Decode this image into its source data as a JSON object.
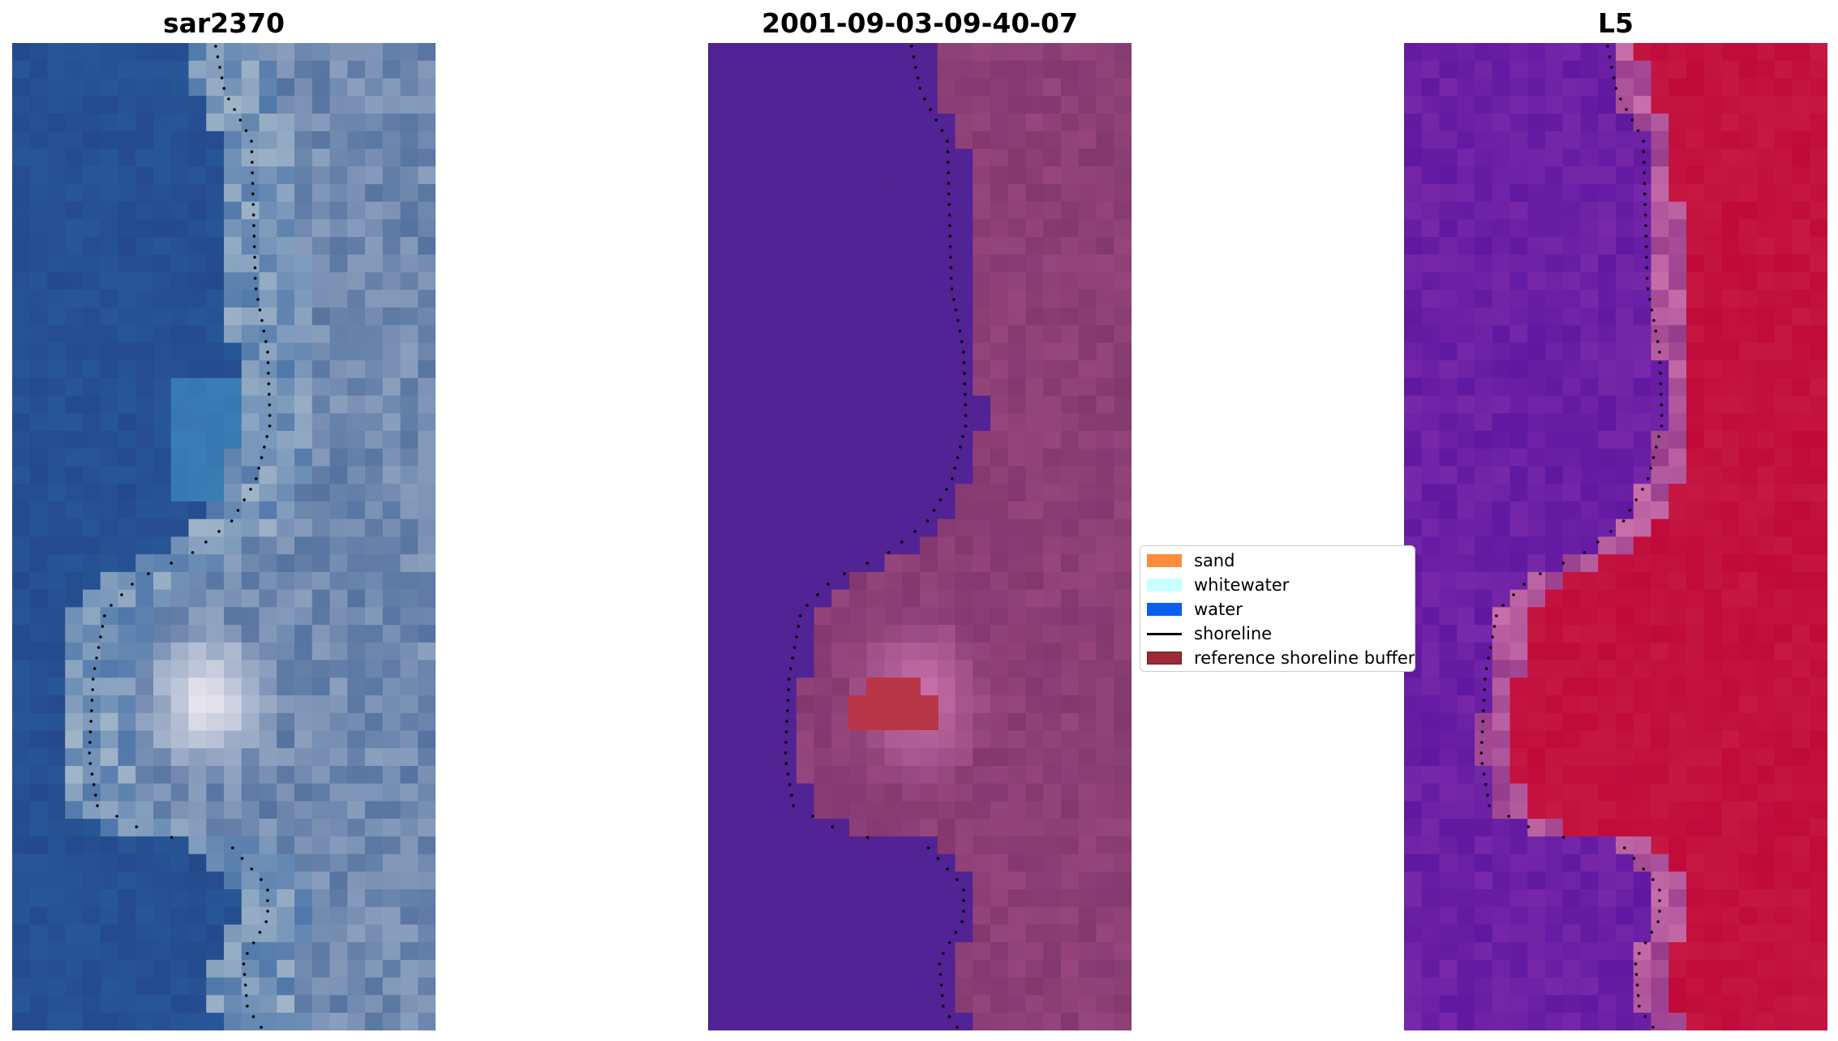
{
  "panels": [
    {
      "title": "sar2370",
      "kind": "rgb-satellite"
    },
    {
      "title": "2001-09-03-09-40-07",
      "kind": "classified-overlay"
    },
    {
      "title": "L5",
      "kind": "index-map"
    }
  ],
  "legend": {
    "items": [
      {
        "label": "sand",
        "type": "patch",
        "color": "#ff8c3c"
      },
      {
        "label": "whitewater",
        "type": "patch",
        "color": "#c8ffff"
      },
      {
        "label": "water",
        "type": "patch",
        "color": "#0a5ef0"
      },
      {
        "label": "shoreline",
        "type": "line",
        "color": "#000000"
      },
      {
        "label": "reference shoreline buffer",
        "type": "patch",
        "color": "#9b2a36"
      }
    ]
  },
  "colors": {
    "water_class": "#522394",
    "sand_class": "#8e3f78",
    "buffer": "#b83647",
    "index_low": "#6a1aa0",
    "index_high": "#c20838"
  }
}
